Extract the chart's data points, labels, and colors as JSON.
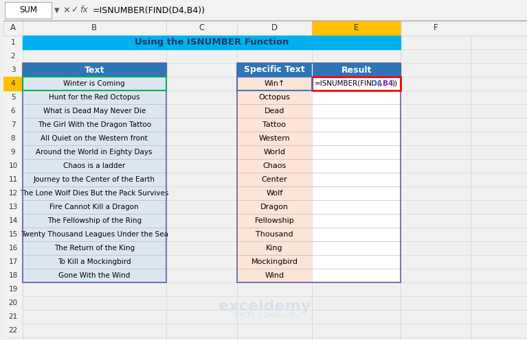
{
  "title": "Using the ISNUMBER Function",
  "formula_bar_text": "=ISNUMBER(FIND(D4,B4))",
  "formula_bar_label": "SUM",
  "col_header_bg": "#d9d9d9",
  "col_header_text": "#000000",
  "title_bg": "#00b0f0",
  "title_text_color": "#1f3864",
  "table1_header_bg": "#2e75b6",
  "table1_header_text": "#ffffff",
  "table1_row_bg1": "#dce6f1",
  "table1_row_bg2": "#dce6f1",
  "table2_header_bg": "#2e75b6",
  "table2_header_text": "#ffffff",
  "table2_row_bg": "#fce4d6",
  "result_col_bg": "#ffffff",
  "text_data": [
    "Winter is Coming",
    "Hunt for the Red Octopus",
    "What is Dead May Never Die",
    "The Girl With the Dragon Tattoo",
    "All Quiet on the Western front",
    "Around the World in Eighty Days",
    "Chaos is a ladder",
    "Journey to the Center of the Earth",
    "The Lone Wolf Dies But the Pack Survives",
    "Fire Cannot Kill a Dragon",
    "The Fellowship of the Ring",
    "Twenty Thousand Leagues Under the Sea",
    "The Return of the King",
    "To Kill a Mockingbird",
    "Gone With the Wind"
  ],
  "specific_text": [
    "Win↑",
    "Octopus",
    "Dead",
    "Tattoo",
    "Western",
    "World",
    "Chaos",
    "Center",
    "Wolf",
    "Dragon",
    "Fellowship",
    "Thousand",
    "King",
    "Mockingbird",
    "Wind"
  ],
  "formula_display": "=ISNUMBER(FIND(D4,B4))",
  "selected_cell_row": 4,
  "col_letters": [
    "A",
    "B",
    "C",
    "D",
    "E",
    "F"
  ],
  "row_numbers": [
    "1",
    "2",
    "3",
    "4",
    "5",
    "6",
    "7",
    "8",
    "9",
    "10",
    "11",
    "12",
    "13",
    "14",
    "15",
    "16",
    "17",
    "18",
    "19",
    "20",
    "21",
    "22"
  ],
  "watermark_text": "exceldemy",
  "watermark_sub": "EXCEL • DATA • BI"
}
